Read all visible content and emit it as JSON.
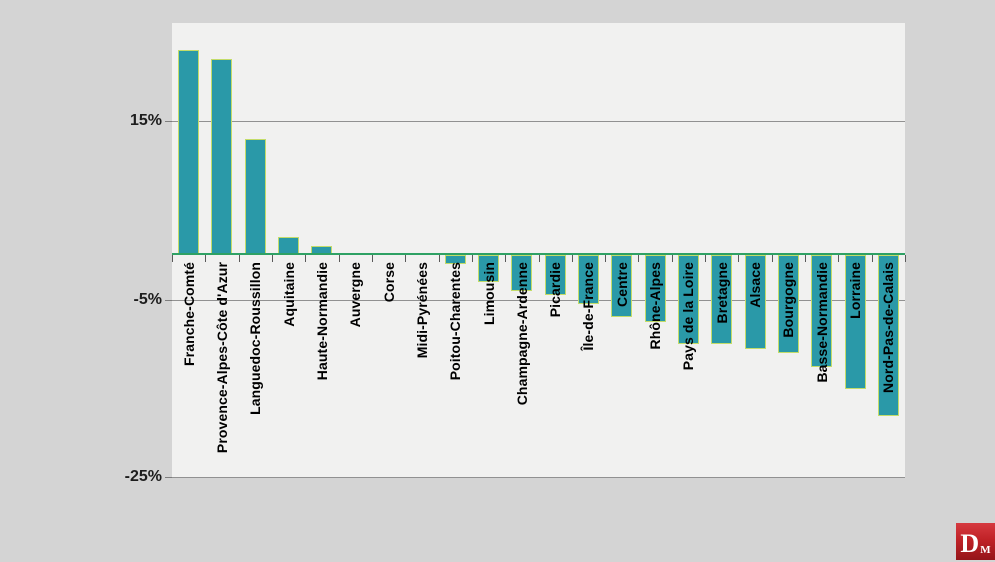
{
  "chart_data": {
    "type": "bar",
    "title": "",
    "xlabel": "",
    "ylabel": "",
    "categories": [
      "Franche-Comté",
      "Provence-Alpes-Côte d'Azur",
      "Languedoc-Roussillon",
      "Aquitaine",
      "Haute-Normandie",
      "Auvergne",
      "Corse",
      "Midi-Pyrénées",
      "Poitou-Charentes",
      "Limousin",
      "Champagne-Ardenne",
      "Picardie",
      "Île-de-France",
      "Centre",
      "Rhône-Alpes",
      "Pays de la Loire",
      "Bretagne",
      "Alsace",
      "Bourgogne",
      "Basse-Normandie",
      "Lorraine",
      "Nord-Pas-de-Calais"
    ],
    "values": [
      23,
      22,
      13,
      2,
      1,
      0,
      0,
      0,
      -1,
      -3,
      -4,
      -4.5,
      -5.5,
      -7,
      -7.5,
      -10,
      -10,
      -10.5,
      -11,
      -12.5,
      -15,
      -18
    ],
    "unit": "%",
    "ylim": [
      -25,
      26
    ],
    "yticks": [
      {
        "label": "15%",
        "value": 15
      },
      {
        "label": "-5%",
        "value": -5
      },
      {
        "label": "-25%",
        "value": -25
      }
    ],
    "grid": true,
    "legend": false,
    "x_labels_rotated_bottom_to_top": true,
    "colors": {
      "bar_fill": "#2a99a8",
      "bar_border": "#c3dc69",
      "zero_line": "#2ea164",
      "gridline": "#919191",
      "plot_bg": "#f1f1f0",
      "page_bg": "#d4d4d4",
      "label_text": "#000000"
    }
  },
  "logo": {
    "letter": "D",
    "subscript": "M",
    "bg": "#c02227"
  }
}
